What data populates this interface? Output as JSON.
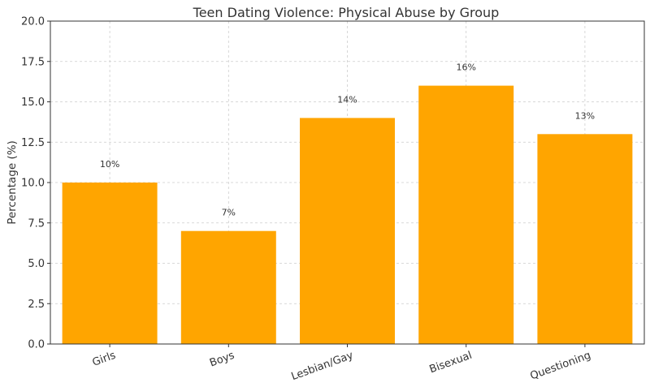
{
  "chart_data": {
    "type": "bar",
    "title": "Teen Dating Violence: Physical Abuse by Group",
    "xlabel": "",
    "ylabel": "Percentage (%)",
    "categories": [
      "Girls",
      "Boys",
      "Lesbian/Gay",
      "Bisexual",
      "Questioning"
    ],
    "values": [
      10,
      7,
      14,
      16,
      13
    ],
    "data_labels": [
      "10%",
      "7%",
      "14%",
      "16%",
      "13%"
    ],
    "ylim": [
      0,
      20
    ],
    "yticks": [
      "0.0",
      "2.5",
      "5.0",
      "7.5",
      "10.0",
      "12.5",
      "15.0",
      "17.5",
      "20.0"
    ],
    "grid": true,
    "bar_color": "#FFA500"
  }
}
